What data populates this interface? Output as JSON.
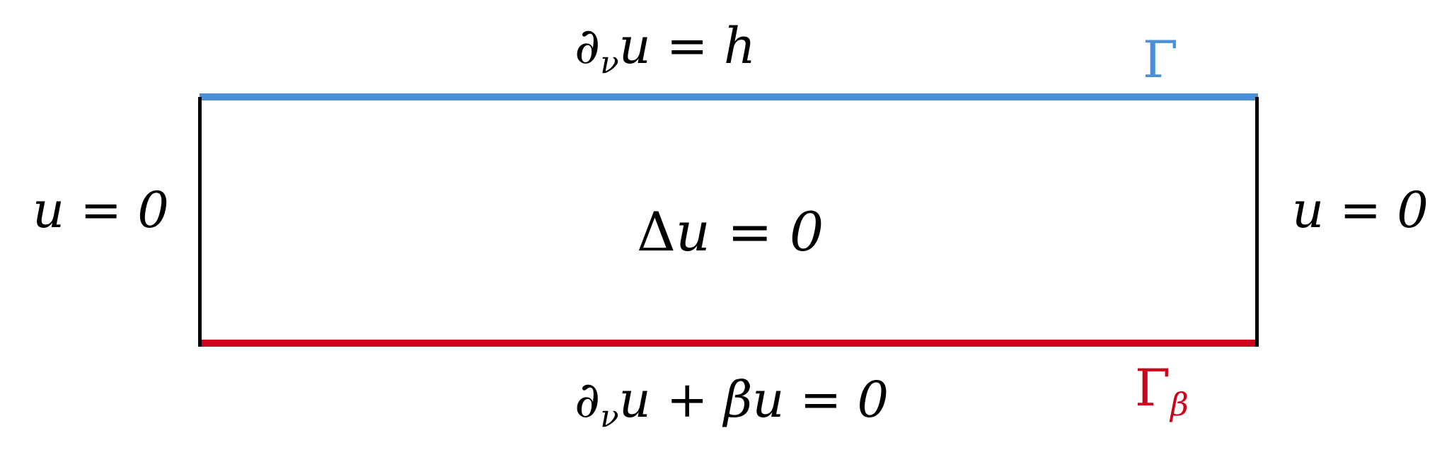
{
  "labels": {
    "top_bc": {
      "partial": "∂",
      "sub": "ν",
      "rest": "u = h"
    },
    "bottom_bc": {
      "partial": "∂",
      "sub": "ν",
      "rest": "u + βu = 0"
    },
    "left_bc": "u = 0",
    "right_bc": "u = 0",
    "interior": {
      "delta": "Δ",
      "rest": "u = 0"
    },
    "gamma_top": "Γ",
    "gamma_bottom": {
      "main": "Γ",
      "sub": "β"
    }
  },
  "colors": {
    "top_edge": "#4a90d9",
    "bottom_edge": "#d0021b",
    "side_edges": "#000000",
    "gamma_top_label": "#4a90d9",
    "gamma_bottom_label": "#d0021b"
  }
}
